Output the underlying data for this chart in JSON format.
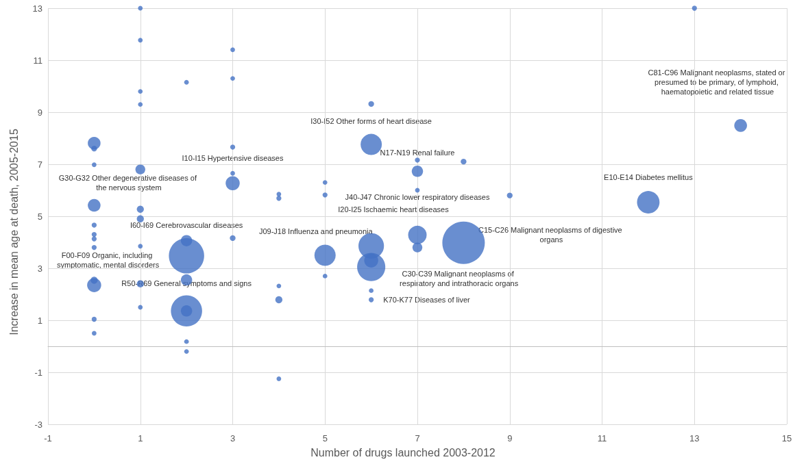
{
  "chart_data": {
    "type": "bubble",
    "xlabel": "Number of drugs launched 2003-2012",
    "ylabel": "Increase in mean age at death, 2005-2015",
    "x": [
      0,
      0,
      0,
      0,
      0,
      0,
      0,
      0,
      0,
      0,
      0,
      0,
      1,
      1,
      1,
      1,
      1,
      1,
      1,
      1,
      1,
      1,
      2,
      2,
      2,
      2,
      2,
      2,
      2,
      2,
      3,
      3,
      3,
      3,
      3,
      3,
      4,
      4,
      4,
      4,
      4,
      5,
      5,
      5,
      5,
      6,
      6,
      6,
      6,
      6,
      6,
      6,
      7,
      7,
      7,
      7,
      7,
      8,
      8,
      9,
      12,
      13,
      14
    ],
    "values": [
      7.81,
      7.6,
      6.98,
      5.42,
      4.66,
      4.3,
      4.13,
      3.8,
      2.54,
      2.35,
      1.04,
      0.5,
      13,
      11.77,
      9.8,
      9.3,
      6.8,
      5.27,
      4.9,
      3.85,
      2.4,
      1.5,
      10.15,
      4.06,
      3.48,
      2.55,
      1.36,
      1.36,
      0.18,
      -0.2,
      11.4,
      10.3,
      7.66,
      6.65,
      6.27,
      4.16,
      5.85,
      5.69,
      2.32,
      1.79,
      -1.25,
      6.3,
      5.82,
      3.5,
      2.7,
      9.32,
      7.76,
      3.86,
      3.3,
      3.05,
      2.14,
      1.79,
      7.16,
      6.73,
      6.0,
      4.28,
      3.8,
      7.1,
      3.98,
      5.8,
      5.54,
      13,
      8.49
    ],
    "sizes": [
      0.09,
      0.018,
      0.012,
      0.09,
      0.014,
      0.014,
      0.014,
      0.014,
      0.028,
      0.11,
      0.014,
      0.012,
      0.012,
      0.012,
      0.012,
      0.012,
      0.054,
      0.028,
      0.028,
      0.012,
      0.028,
      0.012,
      0.012,
      0.071,
      0.69,
      0.071,
      0.54,
      0.071,
      0.012,
      0.012,
      0.012,
      0.012,
      0.014,
      0.012,
      0.11,
      0.018,
      0.012,
      0.014,
      0.012,
      0.028,
      0.012,
      0.012,
      0.014,
      0.25,
      0.012,
      0.018,
      0.25,
      0.36,
      0.11,
      0.44,
      0.012,
      0.014,
      0.014,
      0.071,
      0.012,
      0.19,
      0.054,
      0.018,
      1,
      0.018,
      0.28,
      0.014,
      0.09
    ],
    "color": "#4472c4",
    "xlim": [
      -1,
      15
    ],
    "xticks": [
      -1,
      1,
      3,
      5,
      7,
      9,
      11,
      13,
      15
    ],
    "ylim": [
      -3,
      13
    ],
    "yticks": [
      -3,
      -1,
      1,
      3,
      5,
      7,
      9,
      11,
      13
    ],
    "grid": true,
    "annotations": [
      "C81-C96 Malignant neoplasms, stated or presumed to be primary, of lymphoid, haematopoietic and related tissue",
      "I30-I52 Other forms of heart disease",
      "N17-N19 Renal failure",
      "I10-I15 Hypertensive diseases",
      "E10-E14 Diabetes mellitus",
      "G30-G32 Other degenerative diseases of the nervous system",
      "J40-J47 Chronic lower respiratory diseases",
      "C15-C26 Malignant neoplasms of digestive organs",
      "I60-I69 Cerebrovascular diseases",
      "I20-I25 Ischaemic heart diseases",
      "J09-J18 Influenza and pneumonia",
      "C30-C39 Malignant neoplasms of respiratory and intrathoracic organs",
      "K70-K77 Diseases of liver",
      "F00-F09 Organic, including symptomatic, mental disorders",
      "R50-R69 General symptoms and signs"
    ]
  }
}
